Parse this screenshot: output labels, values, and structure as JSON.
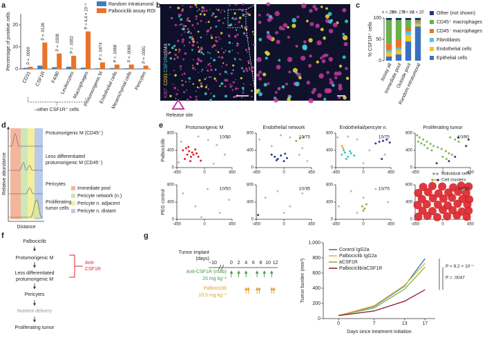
{
  "chart_data": [
    {
      "panel": "a",
      "type": "bar",
      "ylabel": "Percentage of positive cells",
      "categories": [
        "CD31",
        "CSF1R",
        "F4/80",
        "Leukocytes",
        "Macrophages",
        "Protumorigenic M",
        "Endothelial cells",
        "Mesenchymal cells",
        "Pericytes"
      ],
      "series": [
        {
          "name": "Random intratumoral",
          "color": "#3a7fc1",
          "values": [
            0.5,
            1.5,
            0.8,
            1,
            0.6,
            0.3,
            0.4,
            0.3,
            0.2
          ]
        },
        {
          "name": "Palbociclib assay ROI",
          "color": "#e8742a",
          "values": [
            1,
            12,
            7,
            6,
            17,
            3,
            2,
            2,
            1.5
          ]
        }
      ],
      "annotations": [
        "P = .0099",
        "P = .0126",
        "P = .0308",
        "P = .0352",
        "P = 4.4 × 10⁻⁵",
        "P = .0474",
        "P = .0468",
        "P = .0060",
        "P = .0091"
      ],
      "group_label": "–other CSF1R⁺ cells",
      "ylim": [
        0,
        25
      ],
      "yticks": [
        0,
        10,
        20
      ]
    },
    {
      "panel": "c",
      "type": "stacked_bar",
      "ylabel": "% CSF1R⁺ cells",
      "categories": [
        "Assay all",
        "Immediate pool",
        "Outside pool",
        "Random intratumoral"
      ],
      "n_labels": [
        "n = 256",
        "n = 175",
        "n = 81",
        "n = 20"
      ],
      "series": [
        {
          "name": "Other (not shown)",
          "color": "#1f3b6e",
          "values": [
            5,
            5,
            5,
            5
          ]
        },
        {
          "name": "CD45⁺ macrophages",
          "color": "#6ab04c",
          "values": [
            55,
            45,
            20,
            5
          ]
        },
        {
          "name": "CD45⁻ macrophages",
          "color": "#e8742a",
          "values": [
            15,
            20,
            7,
            2
          ]
        },
        {
          "name": "Fibroblasts",
          "color": "#5bc0de",
          "values": [
            5,
            5,
            8,
            3
          ]
        },
        {
          "name": "Endothelial cells",
          "color": "#f2c12e",
          "values": [
            10,
            10,
            15,
            5
          ]
        },
        {
          "name": "Epithelial cells",
          "color": "#3a70c0",
          "values": [
            10,
            15,
            45,
            80
          ]
        }
      ],
      "ylim": [
        0,
        100
      ],
      "yticks": [
        0,
        50,
        100
      ]
    },
    {
      "panel": "e",
      "type": "scatter",
      "title": "Protumorigenic M",
      "row_label": "Palbociclib",
      "count_label": "10/50",
      "xlim": [
        -450,
        450
      ],
      "ylim": [
        0,
        800
      ],
      "xticks": [
        -450,
        0,
        450
      ],
      "yticks": [
        0,
        400,
        800
      ],
      "series": [
        {
          "color": "#bbbbbb",
          "x": [
            -420,
            -100,
            60,
            200,
            330,
            -380,
            150,
            380
          ],
          "y": [
            120,
            720,
            640,
            520,
            300,
            600,
            90,
            700
          ]
        },
        {
          "color": "#d8232a",
          "x": [
            -350,
            -300,
            -250,
            -280,
            -200,
            -150,
            -100,
            -220,
            -320,
            -180,
            -60,
            -260,
            -230,
            -130
          ],
          "y": [
            400,
            450,
            380,
            300,
            350,
            420,
            250,
            250,
            200,
            300,
            160,
            480,
            150,
            330
          ]
        }
      ]
    },
    {
      "type": "scatter",
      "title": "Endothelial network",
      "count_label": "10/75",
      "xlim": [
        -450,
        450
      ],
      "ylim": [
        0,
        800
      ],
      "xticks": [
        -450,
        0,
        450
      ],
      "yticks": [
        0,
        400,
        800
      ],
      "series": [
        {
          "color": "#bbbbbb",
          "x": [
            -400,
            -200,
            100,
            250,
            380,
            -50,
            300
          ],
          "y": [
            650,
            500,
            700,
            300,
            150,
            750,
            450
          ]
        },
        {
          "color": "#2b3a8c",
          "x": [
            -200,
            -150,
            -100,
            -50,
            0,
            50,
            -120,
            20
          ],
          "y": [
            300,
            250,
            200,
            280,
            150,
            220,
            170,
            320
          ]
        },
        {
          "color": "#7fb74e",
          "x": [
            200,
            260,
            320
          ],
          "y": [
            620,
            680,
            700
          ]
        }
      ]
    },
    {
      "type": "scatter",
      "title": "Endothelial/pericyte n.",
      "count_label": "10/75",
      "xlim": [
        -450,
        450
      ],
      "ylim": [
        0,
        800
      ],
      "xticks": [
        -450,
        0,
        450
      ],
      "yticks": [
        0,
        400,
        800
      ],
      "series": [
        {
          "color": "#bbbbbb",
          "x": [
            -420,
            -100,
            100,
            0,
            350,
            -250
          ],
          "y": [
            700,
            650,
            400,
            100,
            300,
            720
          ]
        },
        {
          "color": "#3cc0c8",
          "x": [
            -350,
            -300,
            -250,
            -200,
            -280,
            -150,
            -320,
            -220
          ],
          "y": [
            300,
            350,
            250,
            330,
            200,
            280,
            400,
            380
          ]
        },
        {
          "color": "#2b3a8c",
          "x": [
            200,
            260,
            320,
            380,
            430,
            300
          ],
          "y": [
            560,
            600,
            620,
            650,
            580,
            200
          ]
        },
        {
          "color": "#f2a12e",
          "x": [
            -350,
            -330
          ],
          "y": [
            500,
            450
          ]
        }
      ]
    },
    {
      "type": "scatter",
      "title": "Proliferating tumor",
      "count_label": "10/90",
      "xlim": [
        -450,
        450
      ],
      "ylim": [
        0,
        800
      ],
      "xticks": [
        -450,
        0,
        450
      ],
      "yticks": [
        0,
        400,
        800
      ],
      "series": [
        {
          "color": "#7fb74e",
          "x": [
            -420,
            -380,
            -320,
            -260,
            -200,
            -150,
            -80,
            -20,
            50,
            100,
            150,
            -300,
            -250,
            -180,
            0,
            60,
            -400,
            -350,
            120,
            200,
            260
          ],
          "y": [
            750,
            700,
            650,
            600,
            550,
            500,
            470,
            430,
            380,
            330,
            300,
            520,
            450,
            400,
            250,
            200,
            600,
            560,
            700,
            650,
            600
          ]
        },
        {
          "color": "#2b3a8c",
          "x": [
            100,
            200,
            380,
            420,
            250,
            -100
          ],
          "y": [
            150,
            250,
            500,
            650,
            700,
            100
          ]
        }
      ]
    },
    {
      "type": "scatter",
      "row_label": "PEG control",
      "count_label": "10/50",
      "xlim": [
        -450,
        450
      ],
      "ylim": [
        0,
        800
      ],
      "xticks": [
        -450,
        0,
        450
      ],
      "yticks": [
        0,
        400,
        800
      ],
      "series": [
        {
          "color": "#bbbbbb",
          "x": [
            -350,
            -150,
            50,
            250,
            400,
            -50
          ],
          "y": [
            600,
            300,
            700,
            150,
            450,
            50
          ]
        }
      ]
    },
    {
      "type": "scatter",
      "count_label": "10/75",
      "xlim": [
        -450,
        450
      ],
      "ylim": [
        0,
        800
      ],
      "xticks": [
        -450,
        0,
        450
      ],
      "yticks": [
        0,
        400,
        800
      ],
      "series": [
        {
          "color": "#bbbbbb",
          "x": [
            -300,
            -100,
            100,
            300,
            0,
            380
          ],
          "y": [
            500,
            650,
            300,
            600,
            150,
            700
          ]
        },
        {
          "color": "#2b3a8c",
          "x": [
            -420
          ],
          "y": [
            100
          ]
        }
      ]
    },
    {
      "type": "scatter",
      "count_label": "10/75",
      "xlim": [
        -450,
        450
      ],
      "ylim": [
        0,
        800
      ],
      "xticks": [
        -450,
        0,
        450
      ],
      "yticks": [
        0,
        400,
        800
      ],
      "series": [
        {
          "color": "#bbbbbb",
          "x": [
            -400,
            -200,
            0,
            200,
            400,
            -100
          ],
          "y": [
            300,
            650,
            500,
            700,
            400,
            150
          ]
        },
        {
          "color": "#7fb74e",
          "x": [
            0,
            20,
            -20,
            50
          ],
          "y": [
            200,
            250,
            300,
            350
          ]
        }
      ]
    },
    {
      "type": "scatter",
      "count_label": "10/90",
      "marker_size": 6,
      "xlim": [
        -450,
        450
      ],
      "ylim": [
        0,
        800
      ],
      "xticks": [
        -450,
        0,
        450
      ],
      "yticks": [
        0,
        400,
        800
      ],
      "series": [
        {
          "color": "#d8232a",
          "x": [
            -400,
            -250,
            -90,
            70,
            230,
            390,
            -330,
            -170,
            0,
            160,
            310,
            420,
            -410,
            -260,
            -80,
            80,
            240,
            400,
            -340,
            -160,
            10,
            150,
            320,
            430,
            -400,
            -240,
            -70,
            90,
            250,
            380,
            -320,
            -170,
            -10,
            170,
            300,
            420
          ],
          "y": [
            60,
            80,
            50,
            70,
            90,
            60,
            200,
            190,
            220,
            210,
            180,
            200,
            330,
            350,
            340,
            320,
            360,
            340,
            470,
            490,
            480,
            500,
            470,
            460,
            610,
            630,
            600,
            620,
            640,
            610,
            750,
            770,
            760,
            740,
            780,
            760
          ]
        }
      ]
    },
    {
      "type": "line",
      "xlabel": "Days since treatment initiation",
      "ylabel": "Tumor burden (mm³)",
      "x": [
        0,
        7,
        13,
        17
      ],
      "xlim": [
        -3,
        19
      ],
      "xticks": [
        0,
        7,
        13,
        17
      ],
      "ylim": [
        0,
        1000
      ],
      "yticks": [
        0,
        200,
        400,
        600,
        800,
        {
          "value": 1000,
          "label": "1,000"
        }
      ],
      "series": [
        {
          "name": "Control IgG2a",
          "color": "#2f79c2",
          "values": [
            40,
            160,
            430,
            790
          ]
        },
        {
          "name": "Palbociclib IgG2a",
          "color": "#e6b530",
          "values": [
            40,
            170,
            440,
            730
          ]
        },
        {
          "name": "aCSF1R",
          "color": "#7fb74e",
          "values": [
            40,
            140,
            390,
            680
          ]
        },
        {
          "name": "Palbociclib/aCSF1R",
          "color": "#9b1c3a",
          "values": [
            40,
            100,
            230,
            380
          ]
        }
      ],
      "annotations": [
        "P = 9.2 × 10⁻⁷",
        "P = .0047"
      ]
    }
  ],
  "panel_b": {
    "panel": "b",
    "channels": [
      "Ki67",
      "CD31",
      "CSF1R",
      "αSMA"
    ],
    "caption": "Release site"
  },
  "panel_d": {
    "panel": "d",
    "ylabel": "Relative abundance",
    "xlabel": "Distance",
    "rows": [
      "Protumorigenic M (CD45⁺)",
      "Less differentiated protumorigenic M (CD45⁻)",
      "Pericytes",
      "Proliferating tumor cells"
    ],
    "legend": [
      "Immediate pool",
      "Pericyte network (n.)",
      "Pericyte n. adjacent",
      "Pericyte n. distant"
    ]
  },
  "panel_e": {
    "legend": [
      "Individual cells",
      "Cell clusters"
    ]
  },
  "panel_f": {
    "panel": "f",
    "steps": [
      "Palbociclib",
      "Protumorigenic M",
      "Less differentiated protumorigenic M",
      "Pericytes",
      "Nutrient delivery",
      "Proliferating tumor"
    ],
    "inhibitor": "Anti-CSF1R"
  },
  "panel_g": {
    "panel": "g",
    "timeline_label": "Tumor implant (days)",
    "days": [
      "−10",
      "0",
      "2",
      "4",
      "6",
      "8",
      "10",
      "12"
    ],
    "drugs": [
      {
        "name": "Anti-CSF1R (mAb)",
        "dose": "20 mg kg⁻¹"
      },
      {
        "name": "Palbociclib",
        "dose": "10.5 mg kg⁻¹"
      }
    ]
  }
}
